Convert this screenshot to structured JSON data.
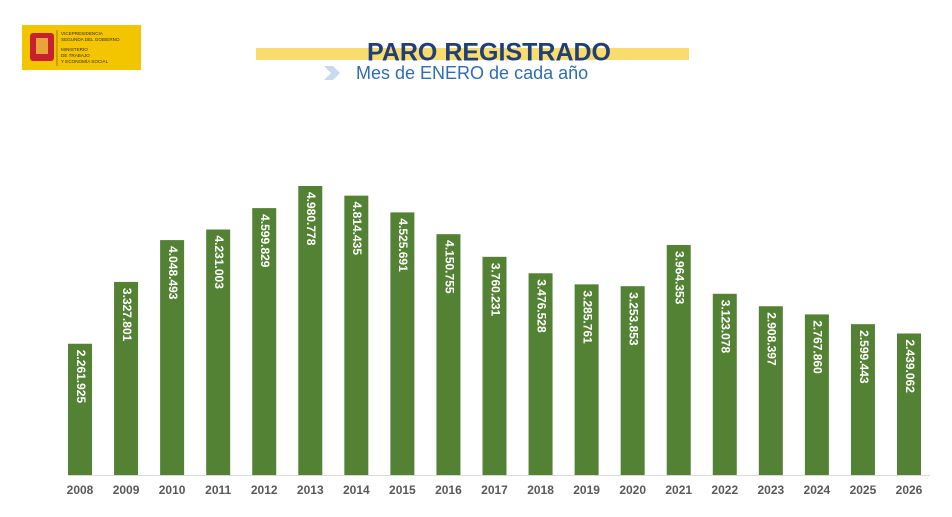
{
  "logo": {
    "lines": [
      "VICEPRESIDENCIA",
      "SEGUNDA DEL GOBIERNO",
      "MINISTERIO",
      "DE TRABAJO",
      "Y ECONOMÍA SOCIAL"
    ]
  },
  "chart_data": {
    "type": "bar",
    "title": "PARO REGISTRADO",
    "subtitle": "Mes de ENERO de cada año",
    "categories": [
      "2008",
      "2009",
      "2010",
      "2011",
      "2012",
      "2013",
      "2014",
      "2015",
      "2016",
      "2017",
      "2018",
      "2019",
      "2020",
      "2021",
      "2022",
      "2023",
      "2024",
      "2025",
      "2026"
    ],
    "values": [
      2261925,
      3327801,
      4048493,
      4231003,
      4599829,
      4980778,
      4814435,
      4525691,
      4150755,
      3760231,
      3476528,
      3285761,
      3253853,
      3964353,
      3123078,
      2908397,
      2767860,
      2599443,
      2439062
    ],
    "value_labels": [
      "2.261.925",
      "3.327.801",
      "4.048.493",
      "4.231.003",
      "4.599.829",
      "4.980.778",
      "4.814.435",
      "4.525.691",
      "4.150.755",
      "3.760.231",
      "3.476.528",
      "3.285.761",
      "3.253.853",
      "3.964.353",
      "3.123.078",
      "2.908.397",
      "2.767.860",
      "2.599.443",
      "2.439.062"
    ],
    "color": "#548235"
  }
}
